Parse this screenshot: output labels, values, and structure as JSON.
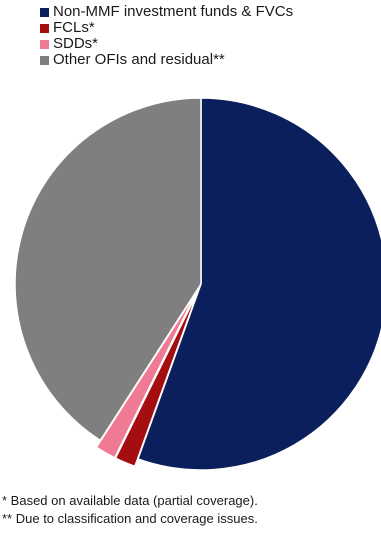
{
  "chart_data": {
    "type": "pie",
    "slices": [
      {
        "label": "Non-MMF investment funds & FVCs",
        "value": 55.5,
        "color": "#0b1f5c"
      },
      {
        "label": "FCLs*",
        "value": 1.8,
        "color": "#a50e10"
      },
      {
        "label": "SDDs*",
        "value": 1.8,
        "color": "#f07a94"
      },
      {
        "label": "Other OFIs and residual**",
        "value": 40.9,
        "color": "#7f7f7f"
      }
    ],
    "start_angle_deg": 0,
    "direction": "clockwise",
    "legend_position": "top-left"
  },
  "notes": [
    "*  Based on available data (partial coverage).",
    "** Due to classification and coverage issues."
  ]
}
